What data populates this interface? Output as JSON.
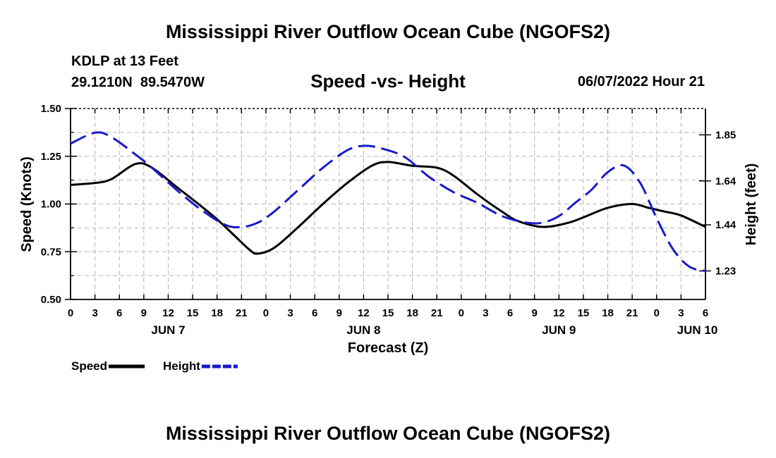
{
  "page": {
    "title": "Mississippi River Outflow Ocean Cube (NGOFS2)",
    "title_repeat": "Mississippi River Outflow Ocean Cube (NGOFS2)",
    "station": "KDLP at 13 Feet",
    "coordinates": "29.1210N  89.5470W",
    "subtitle": "Speed -vs- Height",
    "datetime": "06/07/2022 Hour 21"
  },
  "chart_data": {
    "type": "line",
    "title": "Speed -vs- Height",
    "xlabel": "Forecast (Z)",
    "ylabel": "Speed (Knots)",
    "y2label": "Height (feet)",
    "xlim": [
      0,
      78
    ],
    "ylim": [
      0.5,
      1.5
    ],
    "y2lim": [
      1.1,
      1.97
    ],
    "grid": true,
    "x_ticks": [
      0,
      3,
      6,
      9,
      12,
      15,
      18,
      21,
      24,
      27,
      30,
      33,
      36,
      39,
      42,
      45,
      48,
      51,
      54,
      57,
      60,
      63,
      66,
      69,
      72,
      75,
      78
    ],
    "x_tick_labels": [
      "0",
      "3",
      "6",
      "9",
      "12",
      "15",
      "18",
      "21",
      "0",
      "3",
      "6",
      "9",
      "12",
      "15",
      "18",
      "21",
      "0",
      "3",
      "6",
      "9",
      "12",
      "15",
      "18",
      "21",
      "0",
      "3",
      "6"
    ],
    "date_labels": [
      {
        "label": "JUN 7",
        "x": 12
      },
      {
        "label": "JUN 8",
        "x": 36
      },
      {
        "label": "JUN 9",
        "x": 60
      },
      {
        "label": "JUN 10",
        "x": 77
      }
    ],
    "y_ticks": [
      0.5,
      0.75,
      1.0,
      1.25,
      1.5
    ],
    "y_tick_labels": [
      "0.50",
      "0.75",
      "1.00",
      "1.25",
      "1.50"
    ],
    "y2_ticks": [
      1.23,
      1.44,
      1.64,
      1.85
    ],
    "y2_tick_labels": [
      "1.23",
      "1.44",
      "1.64",
      "1.85"
    ],
    "legend": [
      {
        "label": "Speed",
        "series": "speed"
      },
      {
        "label": "Height",
        "series": "height"
      }
    ],
    "series": [
      {
        "name": "Speed",
        "key": "speed",
        "axis": "left",
        "color": "#000000",
        "dash": "solid",
        "x": [
          0,
          3,
          5,
          8,
          10,
          13,
          16,
          18,
          20,
          22,
          23,
          25,
          28,
          31,
          34,
          37,
          39,
          42,
          45,
          47,
          50,
          53,
          55,
          58,
          61,
          63,
          66,
          69,
          71,
          73,
          75,
          78
        ],
        "y": [
          1.1,
          1.11,
          1.13,
          1.21,
          1.19,
          1.09,
          0.99,
          0.92,
          0.84,
          0.76,
          0.74,
          0.77,
          0.88,
          1.0,
          1.11,
          1.2,
          1.22,
          1.2,
          1.19,
          1.15,
          1.05,
          0.96,
          0.91,
          0.88,
          0.9,
          0.93,
          0.98,
          1.0,
          0.98,
          0.96,
          0.94,
          0.88
        ]
      },
      {
        "name": "Height",
        "key": "height",
        "axis": "right",
        "color": "#1a1ac8",
        "dash": "dashed",
        "x": [
          0,
          3,
          5,
          8,
          10,
          13,
          16,
          19,
          21,
          23,
          25,
          28,
          31,
          34,
          36,
          38,
          41,
          44,
          47,
          50,
          53,
          56,
          58,
          60,
          62,
          64,
          66,
          68,
          70,
          72,
          74,
          76,
          78
        ],
        "y": [
          1.81,
          1.86,
          1.84,
          1.76,
          1.7,
          1.6,
          1.51,
          1.44,
          1.43,
          1.45,
          1.5,
          1.6,
          1.7,
          1.78,
          1.8,
          1.79,
          1.75,
          1.66,
          1.59,
          1.54,
          1.48,
          1.45,
          1.45,
          1.48,
          1.54,
          1.6,
          1.68,
          1.71,
          1.63,
          1.47,
          1.33,
          1.25,
          1.23
        ]
      }
    ]
  }
}
